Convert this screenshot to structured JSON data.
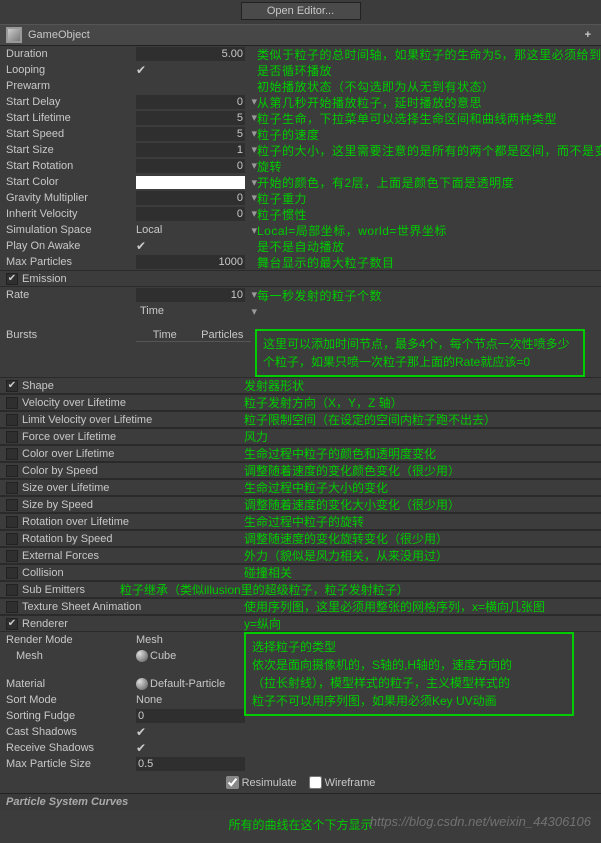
{
  "openEditor": "Open Editor...",
  "header": {
    "title": "GameObject"
  },
  "props": [
    {
      "k": "duration",
      "label": "Duration",
      "value": "5.00",
      "type": "num",
      "note": "类似于粒子的总时间轴，如果粒子的生命为5，那这里必须给到5才能播完"
    },
    {
      "k": "looping",
      "label": "Looping",
      "value": "on",
      "type": "check",
      "note": "是否循环播放"
    },
    {
      "k": "prewarm",
      "label": "Prewarm",
      "value": "off",
      "type": "check",
      "note": "初始播放状态（不勾选即为从无到有状态）"
    },
    {
      "k": "startDelay",
      "label": "Start Delay",
      "value": "0",
      "type": "num",
      "arrow": true,
      "note": "从第几秒开始播放粒子，延时播放的意思"
    },
    {
      "k": "startLifetime",
      "label": "Start Lifetime",
      "value": "5",
      "type": "num",
      "arrow": true,
      "note": "粒子生命，下拉菜单可以选择生命区间和曲线两种类型"
    },
    {
      "k": "startSpeed",
      "label": "Start Speed",
      "value": "5",
      "type": "num",
      "arrow": true,
      "note": "粒子的速度"
    },
    {
      "k": "startSize",
      "label": "Start Size",
      "value": "1",
      "type": "num",
      "arrow": true,
      "note": "粒子的大小，这里需要注意的是所有的两个都是区间，而不是变化值"
    },
    {
      "k": "startRotation",
      "label": "Start Rotation",
      "value": "0",
      "type": "num",
      "arrow": true,
      "note": "旋转"
    },
    {
      "k": "startColor",
      "label": "Start Color",
      "value": "#ffffff",
      "type": "color",
      "arrow": true,
      "note": "开始的颜色，有2层，上面是颜色下面是透明度"
    },
    {
      "k": "gravityMult",
      "label": "Gravity Multiplier",
      "value": "0",
      "type": "num",
      "arrow": true,
      "note": "粒子重力"
    },
    {
      "k": "inheritVel",
      "label": "Inherit Velocity",
      "value": "0",
      "type": "num",
      "arrow": true,
      "note": "粒子惯性"
    },
    {
      "k": "simSpace",
      "label": "Simulation Space",
      "value": "Local",
      "type": "drop",
      "note": "Local=局部坐标，world=世界坐标"
    },
    {
      "k": "playOnAwake",
      "label": "Play On Awake",
      "value": "on",
      "type": "check",
      "note": "是不是自动播放"
    },
    {
      "k": "maxParticles",
      "label": "Max Particles",
      "value": "1000",
      "type": "num",
      "note": "舞台显示的最大粒子数目"
    }
  ],
  "emission": {
    "title": "Emission",
    "rate": {
      "label": "Rate",
      "value": "10",
      "note": "每一秒发射的粒子个数"
    },
    "time": "Time",
    "burstsLabel": "Bursts",
    "burstsHdr": [
      "Time",
      "Particles"
    ],
    "burstsNote1": "这里可以添加时间节点，最多4个，每个节点一次性喷多少",
    "burstsNote2": "个粒子，如果只喷一次粒子那上面的Rate就应该=0"
  },
  "modules": [
    {
      "k": "shape",
      "on": true,
      "label": "Shape",
      "note": "发射器形状"
    },
    {
      "k": "vol",
      "on": false,
      "label": "Velocity over Lifetime",
      "note": "粒子发射方向（X，Y，Z 轴）"
    },
    {
      "k": "lvol",
      "on": false,
      "label": "Limit Velocity over Lifetime",
      "note": "粒子限制空间（在设定的空间内粒子跑不出去）"
    },
    {
      "k": "fol",
      "on": false,
      "label": "Force over Lifetime",
      "note": "风力"
    },
    {
      "k": "col",
      "on": false,
      "label": "Color over Lifetime",
      "note": "生命过程中粒子的颜色和透明度变化"
    },
    {
      "k": "cbs",
      "on": false,
      "label": "Color by Speed",
      "note": "调整随着速度的变化颜色变化（很少用）"
    },
    {
      "k": "sol",
      "on": false,
      "label": "Size over Lifetime",
      "note": "生命过程中粒子大小的变化"
    },
    {
      "k": "sbs",
      "on": false,
      "label": "Size by Speed",
      "note": "调整随着速度的变化大小变化（很少用）"
    },
    {
      "k": "rol",
      "on": false,
      "label": "Rotation over Lifetime",
      "note": "生命过程中粒子的旋转"
    },
    {
      "k": "rbs",
      "on": false,
      "label": "Rotation by Speed",
      "note": "调整随速度的变化旋转变化（很少用）"
    },
    {
      "k": "ext",
      "on": false,
      "label": "External Forces",
      "note": "外力（貌似是风力相关，从来没用过）"
    },
    {
      "k": "coll",
      "on": false,
      "label": "Collision",
      "note": "碰撞相关"
    },
    {
      "k": "sub",
      "on": false,
      "label": "Sub Emitters",
      "note": "粒子继承（类似illusion里的超级粒子，粒子发射粒子）",
      "noteX": 120
    },
    {
      "k": "tsa",
      "on": false,
      "label": "Texture Sheet Animation",
      "note": "使用序列图，这里必须用整张的网格序列，x=横向几张图"
    },
    {
      "k": "renderer",
      "on": true,
      "label": "Renderer",
      "note": "y=纵向"
    }
  ],
  "renderer": {
    "renderMode": {
      "label": "Render Mode",
      "value": "Mesh"
    },
    "mesh": {
      "label": "Mesh",
      "value": "Cube"
    },
    "material": {
      "label": "Material",
      "value": "Default-Particle"
    },
    "sortMode": {
      "label": "Sort Mode",
      "value": "None"
    },
    "sortingFudge": {
      "label": "Sorting Fudge",
      "value": "0"
    },
    "castShadows": {
      "label": "Cast Shadows",
      "value": "on"
    },
    "receiveShadows": {
      "label": "Receive Shadows",
      "value": "on"
    },
    "maxPartSize": {
      "label": "Max Particle Size",
      "value": "0.5"
    },
    "box": {
      "l1": "选择粒子的类型",
      "l2": "依次是面向摄像机的，S轴的,H轴的，速度方向的",
      "l3": "（拉长射线），模型样式的粒子，主义模型样式的",
      "l4": "粒子不可以用序列图，如果用必须Key UV动画"
    }
  },
  "resimulate": "Resimulate",
  "wireframe": "Wireframe",
  "curves": "Particle System Curves",
  "bottomNote": "所有的曲线在这个下方显示",
  "watermark": "https://blog.csdn.net/weixin_44306106"
}
